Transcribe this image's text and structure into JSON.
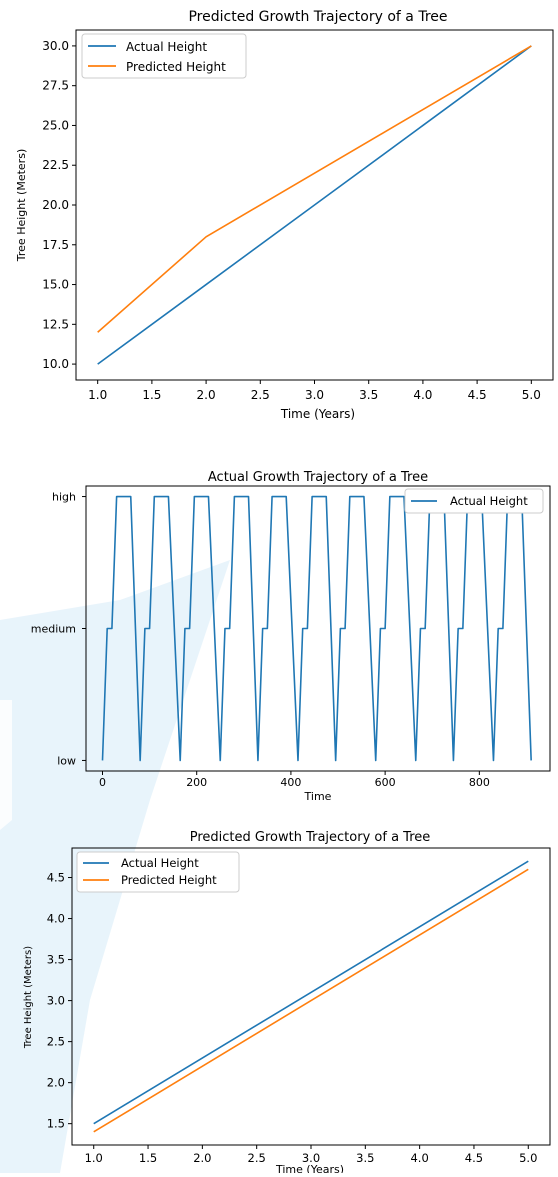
{
  "background": {
    "accent_color": "#d6ebf8"
  },
  "chart_data": [
    {
      "type": "line",
      "title": "Predicted Growth Trajectory of a Tree",
      "xlabel": "Time (Years)",
      "ylabel": "Tree Height (Meters)",
      "x": [
        1,
        2,
        3,
        4,
        5
      ],
      "series": [
        {
          "name": "Actual Height",
          "values": [
            10,
            15,
            20,
            25,
            30
          ],
          "color": "#1f77b4"
        },
        {
          "name": "Predicted Height",
          "values": [
            12,
            18,
            22,
            26,
            30
          ],
          "color": "#ff7f0e"
        }
      ],
      "xlim": [
        0.8,
        5.2
      ],
      "ylim": [
        9.0,
        31.0
      ],
      "xticks": [
        "1.0",
        "1.5",
        "2.0",
        "2.5",
        "3.0",
        "3.5",
        "4.0",
        "4.5",
        "5.0"
      ],
      "yticks": [
        "10.0",
        "12.5",
        "15.0",
        "17.5",
        "20.0",
        "22.5",
        "25.0",
        "27.5",
        "30.0"
      ],
      "legend": "upper left",
      "grid": false
    },
    {
      "type": "line",
      "title": "Actual Growth Trajectory of a Tree",
      "xlabel": "Time",
      "ylabel": "",
      "categories_y": [
        "low",
        "medium",
        "high"
      ],
      "x": [
        0,
        10,
        20,
        30,
        40,
        50,
        60,
        80,
        90,
        100,
        110,
        120,
        130,
        140,
        165,
        175,
        185,
        195,
        205,
        215,
        225,
        250,
        260,
        270,
        280,
        290,
        300,
        310,
        330,
        340,
        350,
        360,
        370,
        380,
        390,
        415,
        425,
        435,
        445,
        455,
        465,
        475,
        495,
        505,
        515,
        525,
        535,
        545,
        555,
        580,
        590,
        600,
        610,
        620,
        630,
        640,
        665,
        675,
        685,
        695,
        705,
        715,
        725,
        745,
        755,
        765,
        775,
        785,
        795,
        805,
        830,
        840,
        850,
        860,
        870,
        880,
        890,
        910
      ],
      "series": [
        {
          "name": "Actual Height",
          "color": "#1f77b4",
          "values": [
            "low",
            "medium",
            "medium",
            "high",
            "high",
            "high",
            "high",
            "low",
            "medium",
            "medium",
            "high",
            "high",
            "high",
            "high",
            "low",
            "medium",
            "medium",
            "high",
            "high",
            "high",
            "high",
            "low",
            "medium",
            "medium",
            "high",
            "high",
            "high",
            "high",
            "low",
            "medium",
            "medium",
            "high",
            "high",
            "high",
            "high",
            "low",
            "medium",
            "medium",
            "high",
            "high",
            "high",
            "high",
            "low",
            "medium",
            "medium",
            "high",
            "high",
            "high",
            "high",
            "low",
            "medium",
            "medium",
            "high",
            "high",
            "high",
            "high",
            "low",
            "medium",
            "medium",
            "high",
            "high",
            "high",
            "high",
            "low",
            "medium",
            "medium",
            "high",
            "high",
            "high",
            "high",
            "low",
            "medium",
            "medium",
            "high",
            "high",
            "high",
            "high",
            "low"
          ]
        }
      ],
      "xlim": [
        -35,
        950
      ],
      "xticks": [
        0,
        200,
        400,
        600,
        800
      ],
      "legend": "upper right",
      "grid": false
    },
    {
      "type": "line",
      "title": "Predicted Growth Trajectory of a Tree",
      "xlabel": "Time (Years)",
      "ylabel": "Tree Height (Meters)",
      "x": [
        1,
        5
      ],
      "series": [
        {
          "name": "Actual Height",
          "values": [
            1.5,
            4.7
          ],
          "color": "#1f77b4"
        },
        {
          "name": "Predicted Height",
          "values": [
            1.4,
            4.6
          ],
          "color": "#ff7f0e"
        }
      ],
      "xlim": [
        0.8,
        5.2
      ],
      "ylim": [
        1.24,
        4.86
      ],
      "xticks": [
        "1.0",
        "1.5",
        "2.0",
        "2.5",
        "3.0",
        "3.5",
        "4.0",
        "4.5",
        "5.0"
      ],
      "yticks": [
        "1.5",
        "2.0",
        "2.5",
        "3.0",
        "3.5",
        "4.0",
        "4.5"
      ],
      "legend": "upper left",
      "grid": false
    }
  ]
}
